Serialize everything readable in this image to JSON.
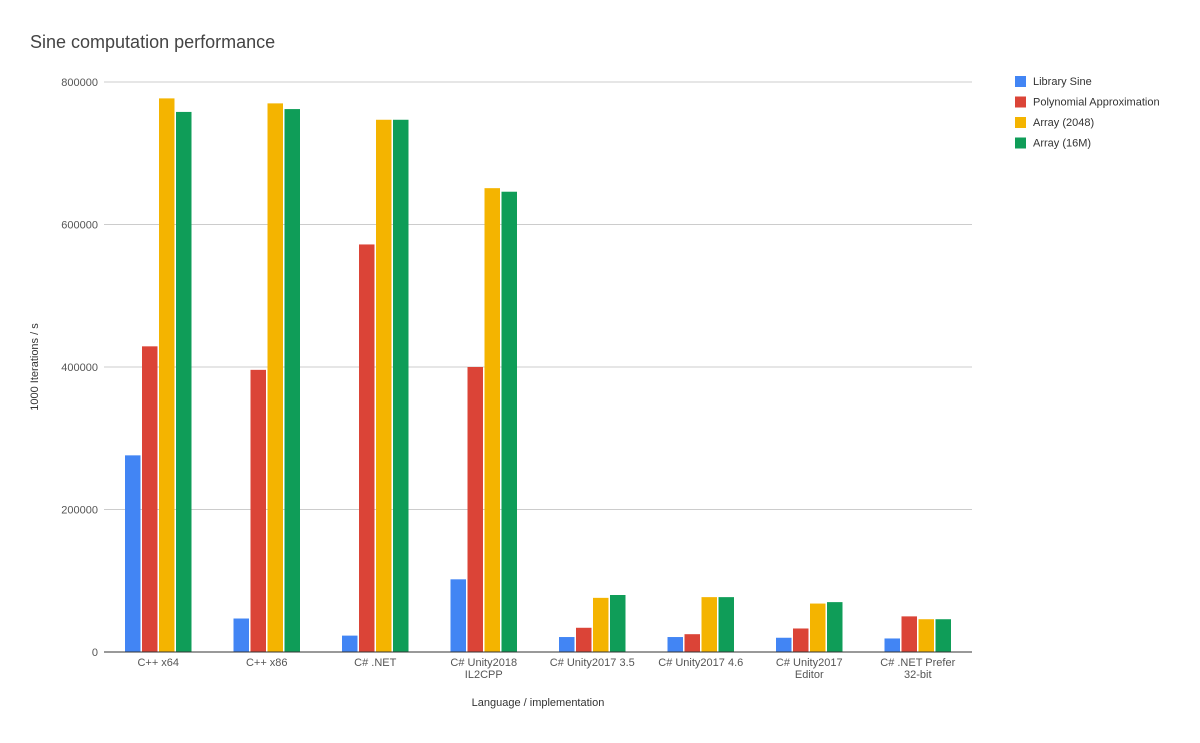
{
  "chart_data": {
    "type": "bar",
    "title": "Sine computation performance",
    "xlabel": "Language / implementation",
    "ylabel": "1000 Iterations / s",
    "ylim": [
      0,
      800000
    ],
    "yticks": [
      0,
      200000,
      400000,
      600000,
      800000
    ],
    "ytick_labels": [
      "0",
      "200000",
      "400000",
      "600000",
      "800000"
    ],
    "grid": true,
    "legend_position": "right",
    "categories": [
      [
        "C++ x64"
      ],
      [
        "C++ x86"
      ],
      [
        "C# .NET"
      ],
      [
        "C# Unity2018",
        "IL2CPP"
      ],
      [
        "C# Unity2017 3.5"
      ],
      [
        "C# Unity2017 4.6"
      ],
      [
        "C# Unity2017",
        "Editor"
      ],
      [
        "C# .NET Prefer",
        "32-bit"
      ]
    ],
    "series": [
      {
        "name": "Library Sine",
        "color": "#4285F4",
        "values": [
          276000,
          47000,
          23000,
          102000,
          21000,
          21000,
          20000,
          19000
        ]
      },
      {
        "name": "Polynomial Approximation",
        "color": "#DB4437",
        "values": [
          429000,
          396000,
          572000,
          400000,
          34000,
          25000,
          33000,
          50000
        ]
      },
      {
        "name": "Array (2048)",
        "color": "#F4B400",
        "values": [
          777000,
          770000,
          747000,
          651000,
          76000,
          77000,
          68000,
          46000
        ]
      },
      {
        "name": "Array (16M)",
        "color": "#0F9D58",
        "values": [
          758000,
          762000,
          747000,
          646000,
          80000,
          77000,
          70000,
          46000
        ]
      }
    ]
  }
}
